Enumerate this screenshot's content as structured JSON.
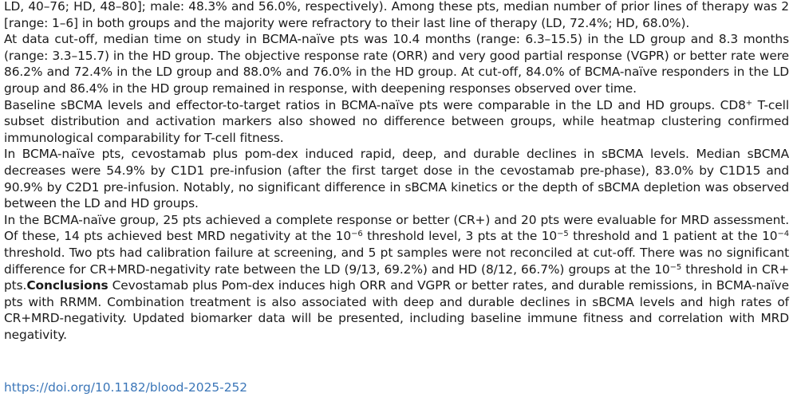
{
  "paragraphs": {
    "p1": "LD, 40–76; HD, 48–80]; male: 48.3% and 56.0%, respectively). Among these pts, median number of prior lines of therapy was 2 [range: 1–6] in both groups and the majority were refractory to their last line of therapy (LD, 72.4%; HD, 68.0%).",
    "p2": "At data cut-off, median time on study in BCMA-naïve pts was 10.4 months (range: 6.3–15.5) in the LD group and 8.3 months (range: 3.3–15.7) in the HD group. The objective response rate (ORR) and very good partial response (VGPR) or better rate were 86.2% and 72.4% in the LD group and 88.0% and 76.0% in the HD group. At cut-off, 84.0% of BCMA-naïve responders in the LD group and 86.4% in the HD group remained in response, with deepening responses observed over time.",
    "p3": {
      "before_sup": "Baseline sBCMA levels and effector-to-target ratios in BCMA-naïve pts were comparable in the LD and HD groups. CD8",
      "sup": "+",
      "after_sup": " T-cell subset distribution and activation markers also showed no difference between groups, while heatmap clustering confirmed immunological comparability for T-cell fitness."
    },
    "p4": "In BCMA-naïve pts, cevostamab plus pom-dex induced rapid, deep, and durable declines in sBCMA levels. Median sBCMA decreases were 54.9% by C1D1 pre-infusion (after the first target dose in the cevostamab pre-phase), 83.0% by C1D15 and 90.9% by C2D1 pre-infusion. Notably, no significant difference in sBCMA kinetics or the depth of sBCMA depletion was observed between the LD and HD groups.",
    "p5": {
      "t1": "In the BCMA-naïve group, 25 pts achieved a complete response or better (CR+) and 20 pts were evaluable for MRD assess­ment. Of these, 14 pts achieved best MRD negativity at the 10",
      "s1": "−6",
      "t2": " threshold level, 3 pts at the 10",
      "s2": "−5",
      "t3": " threshold and 1 patient at the 10",
      "s3": "−4",
      "t4": " threshold. Two pts had calibration failure at screening, and 5 pt samples were not reconciled at cut-off. There was no significant difference for CR+MRD-negativity rate between the LD (9/13, 69.2%) and HD (8/12, 66.7%) groups at the 10",
      "s4": "−5",
      "t5": " threshold in CR+ pts.",
      "conclusions_label": "Conclusions",
      "t6": " Cevostamab plus Pom-dex induces high ORR and VGPR or better rates, and durable remis­sions, in BCMA-naïve pts with RRMM. Combination treatment is also associated with deep and durable declines in sBCMA levels and high rates of CR+MRD-negativity. Updated biomarker data will be presented, including baseline immune fitness and correlation with MRD negativity."
    }
  },
  "doi_link": "https://doi.org/10.1182/blood-2025-252",
  "colors": {
    "text": "#1a1a1a",
    "link": "#3b76b8",
    "background": "#ffffff"
  }
}
